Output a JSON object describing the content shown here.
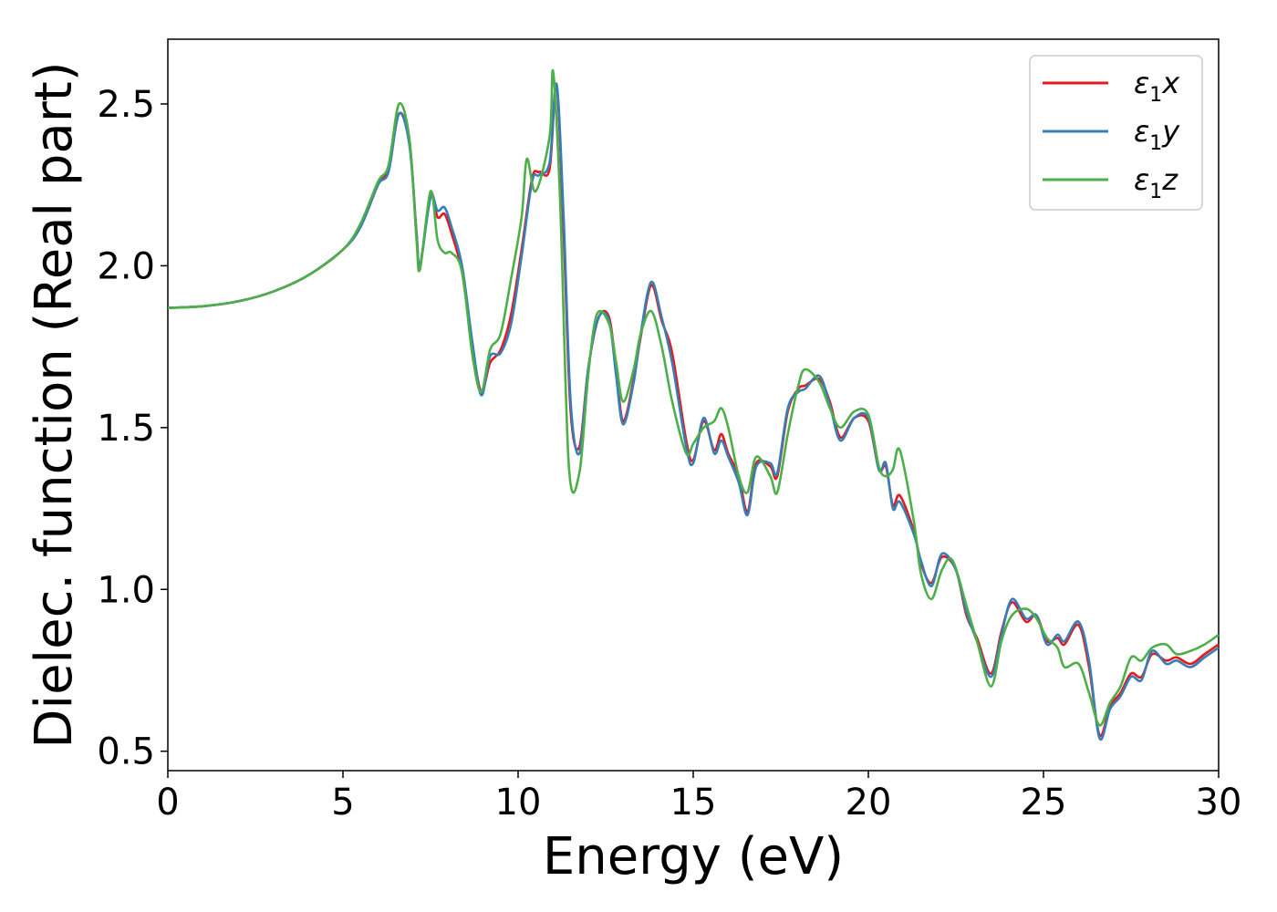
{
  "chart_data": {
    "type": "line",
    "xlabel": "Energy (eV)",
    "ylabel": "Dielec. function (Real part)",
    "xlim": [
      0,
      30
    ],
    "ylim": [
      0.44,
      2.7
    ],
    "xticks": [
      0,
      5,
      10,
      15,
      20,
      25,
      30
    ],
    "yticks": [
      0.5,
      1.0,
      1.5,
      2.0,
      2.5
    ],
    "grid": false,
    "legend_position": "top-right",
    "series": [
      {
        "name": "ε1x",
        "legend": {
          "base": "ε",
          "sub": "1",
          "axis": "x"
        },
        "color": "#e41a1c",
        "points": [
          [
            0,
            1.87
          ],
          [
            1,
            1.875
          ],
          [
            2,
            1.89
          ],
          [
            3,
            1.92
          ],
          [
            4,
            1.97
          ],
          [
            5,
            2.05
          ],
          [
            5.5,
            2.12
          ],
          [
            6,
            2.25
          ],
          [
            6.3,
            2.3
          ],
          [
            6.6,
            2.47
          ],
          [
            6.9,
            2.38
          ],
          [
            7.1,
            2.1
          ],
          [
            7.2,
            2.0
          ],
          [
            7.5,
            2.22
          ],
          [
            7.7,
            2.15
          ],
          [
            7.9,
            2.16
          ],
          [
            8.1,
            2.1
          ],
          [
            8.4,
            1.98
          ],
          [
            8.7,
            1.75
          ],
          [
            8.95,
            1.61
          ],
          [
            9.2,
            1.7
          ],
          [
            9.5,
            1.74
          ],
          [
            9.8,
            1.85
          ],
          [
            10.1,
            2.05
          ],
          [
            10.4,
            2.27
          ],
          [
            10.6,
            2.29
          ],
          [
            10.9,
            2.3
          ],
          [
            11.1,
            2.56
          ],
          [
            11.3,
            2.1
          ],
          [
            11.5,
            1.55
          ],
          [
            11.75,
            1.44
          ],
          [
            12.0,
            1.68
          ],
          [
            12.3,
            1.84
          ],
          [
            12.6,
            1.84
          ],
          [
            12.8,
            1.68
          ],
          [
            13.0,
            1.52
          ],
          [
            13.3,
            1.65
          ],
          [
            13.5,
            1.78
          ],
          [
            13.8,
            1.94
          ],
          [
            14.1,
            1.83
          ],
          [
            14.4,
            1.73
          ],
          [
            14.8,
            1.46
          ],
          [
            15.0,
            1.4
          ],
          [
            15.3,
            1.52
          ],
          [
            15.6,
            1.43
          ],
          [
            15.8,
            1.48
          ],
          [
            16.0,
            1.42
          ],
          [
            16.3,
            1.35
          ],
          [
            16.55,
            1.24
          ],
          [
            16.8,
            1.39
          ],
          [
            17.2,
            1.38
          ],
          [
            17.4,
            1.35
          ],
          [
            17.7,
            1.55
          ],
          [
            18.0,
            1.62
          ],
          [
            18.2,
            1.63
          ],
          [
            18.6,
            1.65
          ],
          [
            18.9,
            1.58
          ],
          [
            19.2,
            1.47
          ],
          [
            19.6,
            1.53
          ],
          [
            20.0,
            1.52
          ],
          [
            20.3,
            1.37
          ],
          [
            20.5,
            1.38
          ],
          [
            20.7,
            1.26
          ],
          [
            20.9,
            1.29
          ],
          [
            21.3,
            1.18
          ],
          [
            21.5,
            1.08
          ],
          [
            21.8,
            1.02
          ],
          [
            22.1,
            1.1
          ],
          [
            22.5,
            1.06
          ],
          [
            22.8,
            0.92
          ],
          [
            23.1,
            0.85
          ],
          [
            23.5,
            0.74
          ],
          [
            23.8,
            0.87
          ],
          [
            24.1,
            0.96
          ],
          [
            24.5,
            0.9
          ],
          [
            24.8,
            0.92
          ],
          [
            25.1,
            0.84
          ],
          [
            25.4,
            0.85
          ],
          [
            25.6,
            0.83
          ],
          [
            26.0,
            0.89
          ],
          [
            26.3,
            0.76
          ],
          [
            26.6,
            0.55
          ],
          [
            26.9,
            0.64
          ],
          [
            27.2,
            0.68
          ],
          [
            27.5,
            0.74
          ],
          [
            27.8,
            0.73
          ],
          [
            28.1,
            0.8
          ],
          [
            28.5,
            0.78
          ],
          [
            28.8,
            0.79
          ],
          [
            29.2,
            0.77
          ],
          [
            29.6,
            0.8
          ],
          [
            30,
            0.83
          ]
        ]
      },
      {
        "name": "ε1y",
        "legend": {
          "base": "ε",
          "sub": "1",
          "axis": "y"
        },
        "color": "#377eb8",
        "points": [
          [
            0,
            1.87
          ],
          [
            1,
            1.875
          ],
          [
            2,
            1.89
          ],
          [
            3,
            1.92
          ],
          [
            4,
            1.97
          ],
          [
            5,
            2.05
          ],
          [
            5.5,
            2.12
          ],
          [
            6,
            2.25
          ],
          [
            6.3,
            2.29
          ],
          [
            6.6,
            2.47
          ],
          [
            6.9,
            2.37
          ],
          [
            7.1,
            2.1
          ],
          [
            7.2,
            2.0
          ],
          [
            7.5,
            2.21
          ],
          [
            7.7,
            2.17
          ],
          [
            7.9,
            2.18
          ],
          [
            8.1,
            2.12
          ],
          [
            8.4,
            2.0
          ],
          [
            8.7,
            1.76
          ],
          [
            8.95,
            1.6
          ],
          [
            9.2,
            1.72
          ],
          [
            9.5,
            1.73
          ],
          [
            9.8,
            1.82
          ],
          [
            10.1,
            2.03
          ],
          [
            10.4,
            2.26
          ],
          [
            10.6,
            2.28
          ],
          [
            10.9,
            2.32
          ],
          [
            11.1,
            2.56
          ],
          [
            11.3,
            2.15
          ],
          [
            11.5,
            1.58
          ],
          [
            11.75,
            1.42
          ],
          [
            12.0,
            1.68
          ],
          [
            12.3,
            1.84
          ],
          [
            12.6,
            1.83
          ],
          [
            12.8,
            1.66
          ],
          [
            13.0,
            1.51
          ],
          [
            13.3,
            1.64
          ],
          [
            13.5,
            1.79
          ],
          [
            13.8,
            1.95
          ],
          [
            14.1,
            1.84
          ],
          [
            14.4,
            1.7
          ],
          [
            14.8,
            1.44
          ],
          [
            15.0,
            1.39
          ],
          [
            15.3,
            1.53
          ],
          [
            15.6,
            1.42
          ],
          [
            15.8,
            1.46
          ],
          [
            16.0,
            1.41
          ],
          [
            16.3,
            1.33
          ],
          [
            16.55,
            1.23
          ],
          [
            16.8,
            1.38
          ],
          [
            17.2,
            1.39
          ],
          [
            17.4,
            1.36
          ],
          [
            17.7,
            1.56
          ],
          [
            18.0,
            1.61
          ],
          [
            18.2,
            1.62
          ],
          [
            18.6,
            1.66
          ],
          [
            18.9,
            1.57
          ],
          [
            19.2,
            1.46
          ],
          [
            19.6,
            1.53
          ],
          [
            20.0,
            1.53
          ],
          [
            20.3,
            1.37
          ],
          [
            20.5,
            1.39
          ],
          [
            20.7,
            1.25
          ],
          [
            20.9,
            1.27
          ],
          [
            21.3,
            1.17
          ],
          [
            21.5,
            1.09
          ],
          [
            21.8,
            1.01
          ],
          [
            22.1,
            1.11
          ],
          [
            22.5,
            1.06
          ],
          [
            22.8,
            0.93
          ],
          [
            23.1,
            0.84
          ],
          [
            23.5,
            0.73
          ],
          [
            23.8,
            0.86
          ],
          [
            24.1,
            0.97
          ],
          [
            24.5,
            0.91
          ],
          [
            24.8,
            0.92
          ],
          [
            25.1,
            0.83
          ],
          [
            25.4,
            0.86
          ],
          [
            25.6,
            0.84
          ],
          [
            26.0,
            0.9
          ],
          [
            26.3,
            0.78
          ],
          [
            26.6,
            0.54
          ],
          [
            26.9,
            0.63
          ],
          [
            27.2,
            0.67
          ],
          [
            27.5,
            0.73
          ],
          [
            27.8,
            0.72
          ],
          [
            28.1,
            0.81
          ],
          [
            28.5,
            0.77
          ],
          [
            28.8,
            0.78
          ],
          [
            29.2,
            0.76
          ],
          [
            29.6,
            0.79
          ],
          [
            30,
            0.82
          ]
        ]
      },
      {
        "name": "ε1z",
        "legend": {
          "base": "ε",
          "sub": "1",
          "axis": "z"
        },
        "color": "#4daf4a",
        "points": [
          [
            0,
            1.87
          ],
          [
            1,
            1.875
          ],
          [
            2,
            1.89
          ],
          [
            3,
            1.92
          ],
          [
            4,
            1.97
          ],
          [
            5,
            2.05
          ],
          [
            5.5,
            2.13
          ],
          [
            6,
            2.26
          ],
          [
            6.3,
            2.31
          ],
          [
            6.6,
            2.5
          ],
          [
            6.9,
            2.39
          ],
          [
            7.1,
            2.08
          ],
          [
            7.2,
            1.99
          ],
          [
            7.5,
            2.23
          ],
          [
            7.7,
            2.08
          ],
          [
            7.9,
            2.04
          ],
          [
            8.1,
            2.04
          ],
          [
            8.4,
            1.98
          ],
          [
            8.7,
            1.72
          ],
          [
            8.95,
            1.61
          ],
          [
            9.2,
            1.74
          ],
          [
            9.5,
            1.79
          ],
          [
            9.8,
            1.96
          ],
          [
            10.1,
            2.15
          ],
          [
            10.25,
            2.33
          ],
          [
            10.5,
            2.23
          ],
          [
            10.9,
            2.4
          ],
          [
            11.0,
            2.6
          ],
          [
            11.2,
            2.2
          ],
          [
            11.45,
            1.38
          ],
          [
            11.75,
            1.36
          ],
          [
            12.0,
            1.66
          ],
          [
            12.25,
            1.85
          ],
          [
            12.6,
            1.82
          ],
          [
            12.8,
            1.7
          ],
          [
            13.0,
            1.58
          ],
          [
            13.3,
            1.68
          ],
          [
            13.5,
            1.79
          ],
          [
            13.8,
            1.86
          ],
          [
            14.1,
            1.75
          ],
          [
            14.4,
            1.58
          ],
          [
            14.8,
            1.42
          ],
          [
            15.0,
            1.45
          ],
          [
            15.3,
            1.5
          ],
          [
            15.6,
            1.52
          ],
          [
            15.8,
            1.56
          ],
          [
            16.0,
            1.5
          ],
          [
            16.3,
            1.35
          ],
          [
            16.55,
            1.3
          ],
          [
            16.8,
            1.41
          ],
          [
            17.2,
            1.35
          ],
          [
            17.4,
            1.3
          ],
          [
            17.7,
            1.48
          ],
          [
            18.0,
            1.63
          ],
          [
            18.2,
            1.68
          ],
          [
            18.6,
            1.64
          ],
          [
            18.9,
            1.56
          ],
          [
            19.2,
            1.5
          ],
          [
            19.6,
            1.55
          ],
          [
            20.0,
            1.54
          ],
          [
            20.3,
            1.38
          ],
          [
            20.5,
            1.35
          ],
          [
            20.7,
            1.37
          ],
          [
            20.9,
            1.43
          ],
          [
            21.3,
            1.21
          ],
          [
            21.5,
            1.05
          ],
          [
            21.8,
            0.97
          ],
          [
            22.1,
            1.06
          ],
          [
            22.4,
            1.09
          ],
          [
            22.8,
            0.95
          ],
          [
            23.1,
            0.84
          ],
          [
            23.5,
            0.7
          ],
          [
            23.8,
            0.84
          ],
          [
            24.1,
            0.92
          ],
          [
            24.5,
            0.94
          ],
          [
            24.8,
            0.91
          ],
          [
            25.1,
            0.85
          ],
          [
            25.4,
            0.82
          ],
          [
            25.6,
            0.76
          ],
          [
            26.0,
            0.77
          ],
          [
            26.3,
            0.68
          ],
          [
            26.6,
            0.58
          ],
          [
            26.9,
            0.65
          ],
          [
            27.2,
            0.7
          ],
          [
            27.5,
            0.79
          ],
          [
            27.8,
            0.78
          ],
          [
            28.1,
            0.82
          ],
          [
            28.5,
            0.83
          ],
          [
            28.8,
            0.8
          ],
          [
            29.2,
            0.81
          ],
          [
            29.6,
            0.83
          ],
          [
            30,
            0.86
          ]
        ]
      }
    ]
  }
}
